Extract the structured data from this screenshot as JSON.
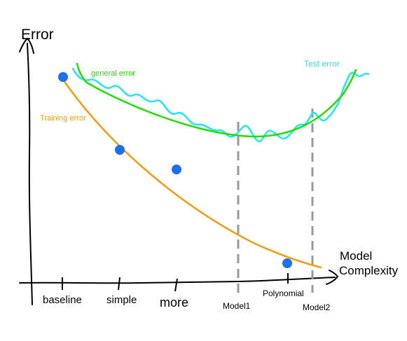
{
  "axes": {
    "y_label": "Error",
    "x_label_line1": "Model",
    "x_label_line2": "Complexity"
  },
  "curves": {
    "general_error_label": "general error",
    "test_error_label": "Test error",
    "training_error_label": "Training error"
  },
  "x_ticks": [
    {
      "label": "baseline"
    },
    {
      "label": "simple"
    },
    {
      "label": "more"
    },
    {
      "label": "Polynomial"
    }
  ],
  "reference_lines": [
    {
      "label": "Model1"
    },
    {
      "label": "Model2"
    }
  ],
  "colors": {
    "axis": "#000000",
    "general_error": "#22dd00",
    "test_error": "#22e5ee",
    "training_error": "#f39c12",
    "points": "#1f6fe8",
    "reference_lines": "#999999"
  }
}
